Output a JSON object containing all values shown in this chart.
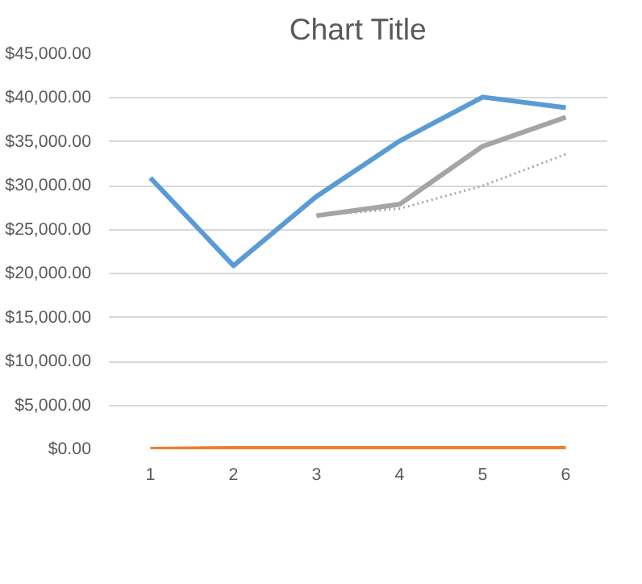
{
  "chart_data": {
    "type": "line",
    "title": "Chart Title",
    "categories": [
      "1",
      "2",
      "3",
      "4",
      "5",
      "6"
    ],
    "series": [
      {
        "color": "#5b9bd5",
        "values": [
          30900,
          20900,
          28800,
          35100,
          40100,
          38900
        ]
      },
      {
        "color": "#ed7d31",
        "values": [
          0,
          100,
          100,
          100,
          100,
          100
        ]
      },
      {
        "color": "#a5a5a5",
        "values": [
          null,
          null,
          26600,
          27900,
          34500,
          37800
        ]
      },
      {
        "color": "#a5a5a5",
        "line_style": "dotted",
        "values": [
          null,
          null,
          26600,
          27400,
          30000,
          33600
        ]
      }
    ],
    "ylim": [
      0,
      45000
    ],
    "yticks": [
      {
        "value": 0,
        "label": "$0.00"
      },
      {
        "value": 5000,
        "label": "$5,000.00"
      },
      {
        "value": 10000,
        "label": "$10,000.00"
      },
      {
        "value": 15000,
        "label": "$15,000.00"
      },
      {
        "value": 20000,
        "label": "$20,000.00"
      },
      {
        "value": 25000,
        "label": "$25,000.00"
      },
      {
        "value": 30000,
        "label": "$30,000.00"
      },
      {
        "value": 35000,
        "label": "$35,000.00"
      },
      {
        "value": 40000,
        "label": "$40,000.00"
      },
      {
        "value": 45000,
        "label": "$45,000.00"
      }
    ],
    "grid": "y",
    "line_style": "solid",
    "marker": "none"
  }
}
